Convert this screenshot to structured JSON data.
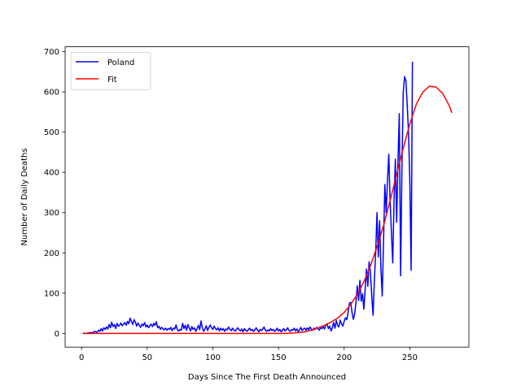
{
  "chart_data": {
    "type": "line",
    "title": "",
    "xlabel": "Days Since The First Death Announced",
    "ylabel": "Number of Daily Deaths",
    "xlim": [
      -12.5,
      295
    ],
    "ylim": [
      -34,
      712
    ],
    "xticks": [
      0,
      50,
      100,
      150,
      200,
      250
    ],
    "yticks": [
      0,
      100,
      200,
      300,
      400,
      500,
      600,
      700
    ],
    "grid": false,
    "legend_position": "top-left",
    "series": [
      {
        "name": "Poland",
        "color": "#0000ff",
        "points": [
          [
            1,
            1
          ],
          [
            3,
            0
          ],
          [
            5,
            1
          ],
          [
            7,
            2
          ],
          [
            9,
            2
          ],
          [
            10,
            5
          ],
          [
            12,
            3
          ],
          [
            13,
            8
          ],
          [
            14,
            5
          ],
          [
            15,
            12
          ],
          [
            16,
            6
          ],
          [
            17,
            14
          ],
          [
            18,
            10
          ],
          [
            19,
            16
          ],
          [
            20,
            11
          ],
          [
            21,
            22
          ],
          [
            22,
            14
          ],
          [
            23,
            28
          ],
          [
            24,
            17
          ],
          [
            25,
            22
          ],
          [
            26,
            12
          ],
          [
            27,
            25
          ],
          [
            28,
            18
          ],
          [
            29,
            20
          ],
          [
            30,
            26
          ],
          [
            31,
            19
          ],
          [
            32,
            23
          ],
          [
            33,
            27
          ],
          [
            34,
            20
          ],
          [
            35,
            30
          ],
          [
            36,
            24
          ],
          [
            37,
            38
          ],
          [
            38,
            30
          ],
          [
            39,
            22
          ],
          [
            40,
            34
          ],
          [
            41,
            28
          ],
          [
            42,
            18
          ],
          [
            43,
            26
          ],
          [
            44,
            20
          ],
          [
            45,
            15
          ],
          [
            46,
            23
          ],
          [
            47,
            19
          ],
          [
            48,
            27
          ],
          [
            49,
            16
          ],
          [
            50,
            21
          ],
          [
            51,
            14
          ],
          [
            52,
            19
          ],
          [
            53,
            23
          ],
          [
            54,
            17
          ],
          [
            55,
            25
          ],
          [
            56,
            20
          ],
          [
            57,
            29
          ],
          [
            58,
            14
          ],
          [
            59,
            18
          ],
          [
            60,
            10
          ],
          [
            61,
            15
          ],
          [
            62,
            12
          ],
          [
            63,
            9
          ],
          [
            64,
            13
          ],
          [
            65,
            8
          ],
          [
            66,
            12
          ],
          [
            67,
            10
          ],
          [
            68,
            15
          ],
          [
            69,
            7
          ],
          [
            70,
            13
          ],
          [
            71,
            11
          ],
          [
            72,
            21
          ],
          [
            73,
            9
          ],
          [
            74,
            6
          ],
          [
            75,
            10
          ],
          [
            76,
            8
          ],
          [
            77,
            25
          ],
          [
            78,
            12
          ],
          [
            79,
            20
          ],
          [
            80,
            8
          ],
          [
            81,
            22
          ],
          [
            82,
            14
          ],
          [
            83,
            6
          ],
          [
            84,
            17
          ],
          [
            85,
            10
          ],
          [
            86,
            14
          ],
          [
            87,
            5
          ],
          [
            88,
            12
          ],
          [
            89,
            20
          ],
          [
            90,
            9
          ],
          [
            91,
            31
          ],
          [
            92,
            14
          ],
          [
            93,
            5
          ],
          [
            94,
            11
          ],
          [
            95,
            19
          ],
          [
            96,
            7
          ],
          [
            97,
            15
          ],
          [
            98,
            21
          ],
          [
            99,
            14
          ],
          [
            100,
            10
          ],
          [
            101,
            18
          ],
          [
            102,
            12
          ],
          [
            103,
            9
          ],
          [
            104,
            14
          ],
          [
            105,
            6
          ],
          [
            106,
            13
          ],
          [
            107,
            8
          ],
          [
            108,
            12
          ],
          [
            109,
            5
          ],
          [
            110,
            11
          ],
          [
            111,
            9
          ],
          [
            112,
            16
          ],
          [
            113,
            10
          ],
          [
            114,
            7
          ],
          [
            115,
            13
          ],
          [
            116,
            8
          ],
          [
            117,
            6
          ],
          [
            118,
            10
          ],
          [
            119,
            14
          ],
          [
            120,
            9
          ],
          [
            121,
            6
          ],
          [
            122,
            11
          ],
          [
            123,
            4
          ],
          [
            124,
            12
          ],
          [
            125,
            8
          ],
          [
            126,
            5
          ],
          [
            127,
            9
          ],
          [
            128,
            13
          ],
          [
            129,
            7
          ],
          [
            130,
            10
          ],
          [
            131,
            5
          ],
          [
            132,
            9
          ],
          [
            133,
            14
          ],
          [
            134,
            8
          ],
          [
            135,
            4
          ],
          [
            136,
            10
          ],
          [
            137,
            7
          ],
          [
            138,
            11
          ],
          [
            139,
            16
          ],
          [
            140,
            8
          ],
          [
            141,
            5
          ],
          [
            142,
            9
          ],
          [
            143,
            6
          ],
          [
            144,
            12
          ],
          [
            145,
            7
          ],
          [
            146,
            10
          ],
          [
            147,
            5
          ],
          [
            148,
            8
          ],
          [
            149,
            13
          ],
          [
            150,
            6
          ],
          [
            151,
            10
          ],
          [
            152,
            4
          ],
          [
            153,
            8
          ],
          [
            154,
            12
          ],
          [
            155,
            6
          ],
          [
            156,
            9
          ],
          [
            157,
            14
          ],
          [
            158,
            7
          ],
          [
            159,
            5
          ],
          [
            160,
            10
          ],
          [
            161,
            8
          ],
          [
            162,
            13
          ],
          [
            163,
            6
          ],
          [
            164,
            11
          ],
          [
            165,
            4
          ],
          [
            166,
            9
          ],
          [
            167,
            15
          ],
          [
            168,
            7
          ],
          [
            169,
            11
          ],
          [
            170,
            13
          ],
          [
            171,
            8
          ],
          [
            172,
            14
          ],
          [
            173,
            9
          ],
          [
            174,
            16
          ],
          [
            175,
            11
          ],
          [
            176,
            8
          ],
          [
            177,
            13
          ],
          [
            178,
            10
          ],
          [
            179,
            15
          ],
          [
            180,
            12
          ],
          [
            181,
            8
          ],
          [
            182,
            14
          ],
          [
            183,
            12
          ],
          [
            184,
            17
          ],
          [
            185,
            11
          ],
          [
            186,
            20
          ],
          [
            187,
            24
          ],
          [
            188,
            12
          ],
          [
            189,
            18
          ],
          [
            190,
            6
          ],
          [
            191,
            14
          ],
          [
            192,
            27
          ],
          [
            193,
            13
          ],
          [
            194,
            32
          ],
          [
            195,
            20
          ],
          [
            196,
            16
          ],
          [
            197,
            33
          ],
          [
            198,
            24
          ],
          [
            199,
            18
          ],
          [
            200,
            30
          ],
          [
            201,
            39
          ],
          [
            202,
            34
          ],
          [
            203,
            52
          ],
          [
            204,
            75
          ],
          [
            205,
            77
          ],
          [
            206,
            52
          ],
          [
            207,
            35
          ],
          [
            208,
            48
          ],
          [
            209,
            78
          ],
          [
            210,
            118
          ],
          [
            211,
            82
          ],
          [
            212,
            132
          ],
          [
            213,
            80
          ],
          [
            214,
            98
          ],
          [
            215,
            60
          ],
          [
            216,
            110
          ],
          [
            217,
            160
          ],
          [
            218,
            117
          ],
          [
            219,
            178
          ],
          [
            220,
            152
          ],
          [
            221,
            95
          ],
          [
            222,
            45
          ],
          [
            223,
            130
          ],
          [
            224,
            200
          ],
          [
            225,
            300
          ],
          [
            226,
            190
          ],
          [
            227,
            280
          ],
          [
            228,
            160
          ],
          [
            229,
            93
          ],
          [
            230,
            230
          ],
          [
            231,
            370
          ],
          [
            232,
            300
          ],
          [
            233,
            380
          ],
          [
            234,
            445
          ],
          [
            235,
            330
          ],
          [
            236,
            250
          ],
          [
            237,
            175
          ],
          [
            238,
            330
          ],
          [
            239,
            433
          ],
          [
            240,
            276
          ],
          [
            241,
            430
          ],
          [
            242,
            546
          ],
          [
            243,
            143
          ],
          [
            244,
            412
          ],
          [
            245,
            598
          ],
          [
            246,
            638
          ],
          [
            247,
            628
          ],
          [
            248,
            570
          ],
          [
            249,
            500
          ],
          [
            250,
            380
          ],
          [
            251,
            157
          ],
          [
            252,
            675
          ]
        ]
      },
      {
        "name": "Fit",
        "color": "#ff0000",
        "points": [
          [
            1,
            0
          ],
          [
            20,
            0
          ],
          [
            40,
            0
          ],
          [
            60,
            0
          ],
          [
            80,
            0
          ],
          [
            100,
            0
          ],
          [
            120,
            0
          ],
          [
            140,
            0
          ],
          [
            150,
            0
          ],
          [
            155,
            0
          ],
          [
            160,
            1
          ],
          [
            165,
            2
          ],
          [
            170,
            4
          ],
          [
            175,
            8
          ],
          [
            180,
            14
          ],
          [
            185,
            20
          ],
          [
            190,
            28
          ],
          [
            195,
            38
          ],
          [
            200,
            52
          ],
          [
            205,
            72
          ],
          [
            210,
            97
          ],
          [
            215,
            128
          ],
          [
            220,
            168
          ],
          [
            225,
            215
          ],
          [
            230,
            268
          ],
          [
            235,
            330
          ],
          [
            240,
            395
          ],
          [
            245,
            460
          ],
          [
            250,
            520
          ],
          [
            255,
            570
          ],
          [
            260,
            600
          ],
          [
            265,
            614
          ],
          [
            270,
            612
          ],
          [
            275,
            596
          ],
          [
            280,
            566
          ],
          [
            282,
            548
          ]
        ]
      }
    ]
  }
}
